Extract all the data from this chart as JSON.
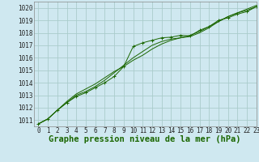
{
  "title": "Graphe pression niveau de la mer (hPa)",
  "bg_color": "#cfe8f0",
  "grid_color": "#aacccc",
  "line_color": "#1a6600",
  "xlim": [
    -0.5,
    23
  ],
  "ylim": [
    1010.5,
    1020.5
  ],
  "yticks": [
    1011,
    1012,
    1013,
    1014,
    1015,
    1016,
    1017,
    1018,
    1019,
    1020
  ],
  "xticks": [
    0,
    1,
    2,
    3,
    4,
    5,
    6,
    7,
    8,
    9,
    10,
    11,
    12,
    13,
    14,
    15,
    16,
    17,
    18,
    19,
    20,
    21,
    22,
    23
  ],
  "series": [
    [
      1010.7,
      1011.1,
      1011.8,
      1012.4,
      1012.9,
      1013.2,
      1013.6,
      1014.0,
      1014.5,
      1015.3,
      1016.9,
      1017.2,
      1017.4,
      1017.6,
      1017.65,
      1017.8,
      1017.75,
      1018.2,
      1018.5,
      1019.0,
      1019.2,
      1019.5,
      1019.7,
      1020.1
    ],
    [
      1010.7,
      1011.1,
      1011.8,
      1012.4,
      1013.0,
      1013.3,
      1013.7,
      1014.2,
      1014.8,
      1015.4,
      1016.0,
      1016.5,
      1017.0,
      1017.3,
      1017.5,
      1017.6,
      1017.7,
      1018.0,
      1018.4,
      1018.9,
      1019.3,
      1019.6,
      1019.8,
      1020.1
    ],
    [
      1010.7,
      1011.1,
      1011.8,
      1012.5,
      1013.1,
      1013.5,
      1013.9,
      1014.4,
      1014.9,
      1015.3,
      1015.8,
      1016.2,
      1016.7,
      1017.1,
      1017.4,
      1017.6,
      1017.8,
      1018.1,
      1018.5,
      1018.9,
      1019.3,
      1019.6,
      1019.9,
      1020.2
    ]
  ],
  "marker_series": 0,
  "title_fontsize": 7.5,
  "tick_fontsize": 5.5
}
